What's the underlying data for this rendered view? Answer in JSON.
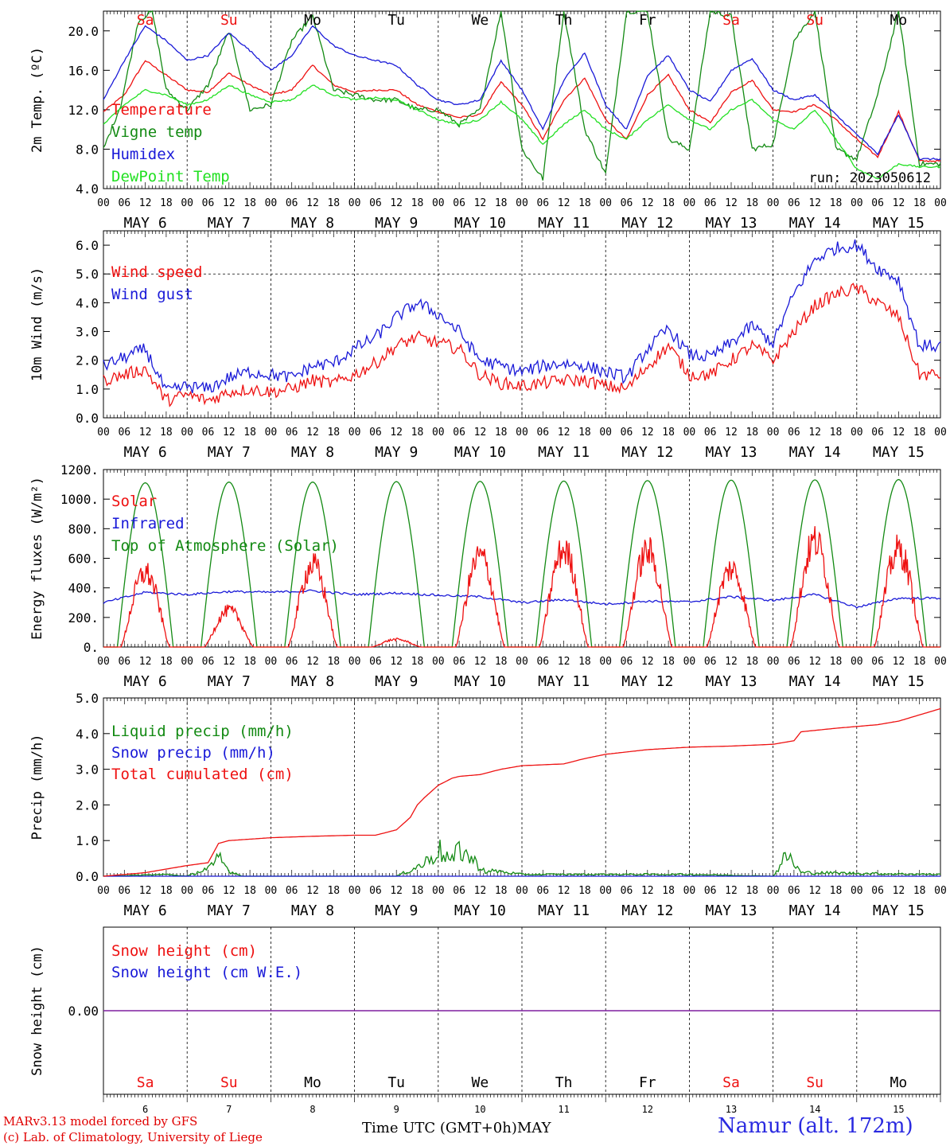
{
  "footer": {
    "credit_line1": "MARv3.13 model forced by GFS",
    "credit_line2": "(c) Lab. of Climatology, University of Liege",
    "xaxis_title": "Time UTC (GMT+0h)MAY",
    "station": "Namur (alt. 172m)"
  },
  "colors": {
    "red": "#ee1111",
    "blue": "#1a1ad8",
    "green": "#138a13",
    "lightgreen": "#22e022",
    "purple": "#7f1f9f",
    "weekend": "#ee1111",
    "weekday": "#000000"
  },
  "chart_data": [
    {
      "type": "line",
      "ylabel": "2m Temp. (ºC)",
      "ylim": [
        4,
        22
      ],
      "yticks": [
        "4.0",
        "8.0",
        "12.0",
        "16.0",
        "20.0"
      ],
      "ytick_values": [
        4,
        8,
        12,
        16,
        20
      ],
      "grid": "vertical dashed at 00 UTC",
      "annotation": "run: 2023050612",
      "weekday_labels": [
        "Sa",
        "Su",
        "Mo",
        "Tu",
        "We",
        "Th",
        "Fr",
        "Sa",
        "Su",
        "Mo"
      ],
      "x_unit": "hours since May 6 00 UTC",
      "series": [
        {
          "name": "Temperature",
          "color": "red",
          "x": [
            0,
            6,
            12,
            18,
            24,
            30,
            36,
            42,
            48,
            54,
            60,
            66,
            72,
            78,
            84,
            90,
            96,
            102,
            108,
            114,
            120,
            126,
            132,
            138,
            144,
            150,
            156,
            162,
            168,
            174,
            180,
            186,
            192,
            198,
            204,
            210,
            216,
            222,
            228,
            234
          ],
          "y": [
            11.8,
            13.5,
            17.0,
            15.5,
            14.0,
            13.8,
            15.7,
            14.5,
            13.5,
            14.0,
            16.5,
            14.5,
            13.8,
            14.0,
            14.0,
            12.5,
            11.8,
            11.2,
            11.5,
            14.8,
            12.5,
            9.0,
            13.0,
            15.2,
            11.0,
            9.0,
            13.5,
            15.5,
            12.0,
            10.7,
            13.8,
            15.0,
            12.0,
            11.8,
            12.5,
            11.0,
            9.0,
            7.2,
            11.8,
            6.8
          ]
        },
        {
          "name": "Vigne temp",
          "color": "green",
          "x": [
            0,
            5,
            10,
            14,
            18,
            24,
            30,
            36,
            42,
            48,
            54,
            60,
            66,
            72,
            78,
            84,
            90,
            96,
            102,
            108,
            114,
            120,
            126,
            132,
            138,
            144,
            150,
            156,
            162,
            168,
            174,
            180,
            186,
            192,
            198,
            204,
            210,
            216,
            222,
            228,
            234
          ],
          "y": [
            8.0,
            12.5,
            21.0,
            22.0,
            14.0,
            12.0,
            14.5,
            20.0,
            12.0,
            12.5,
            19.0,
            21.5,
            14.0,
            13.5,
            13.0,
            13.0,
            12.0,
            12.0,
            10.5,
            12.0,
            22.0,
            8.0,
            5.0,
            22.0,
            10.0,
            5.5,
            22.0,
            22.0,
            9.0,
            8.0,
            22.0,
            21.5,
            8.0,
            8.5,
            19.0,
            22.0,
            8.0,
            7.0,
            13.5,
            22.0,
            6.5
          ]
        },
        {
          "name": "Humidex",
          "color": "blue",
          "x": [
            0,
            6,
            12,
            18,
            24,
            30,
            36,
            42,
            48,
            54,
            60,
            66,
            72,
            78,
            84,
            90,
            96,
            102,
            108,
            114,
            120,
            126,
            132,
            138,
            144,
            150,
            156,
            162,
            168,
            174,
            180,
            186,
            192,
            198,
            204,
            210,
            216,
            222,
            228,
            234
          ],
          "y": [
            13.0,
            17.0,
            20.5,
            19.0,
            17.0,
            17.5,
            19.8,
            18.0,
            16.0,
            17.5,
            20.5,
            18.5,
            17.5,
            17.0,
            16.5,
            14.5,
            13.0,
            12.5,
            13.0,
            17.0,
            14.0,
            10.0,
            15.0,
            17.8,
            12.5,
            10.0,
            15.5,
            17.5,
            14.0,
            12.8,
            16.0,
            17.2,
            14.0,
            13.0,
            13.5,
            11.5,
            9.5,
            7.5,
            11.5,
            7.0
          ]
        },
        {
          "name": "DewPoint Temp",
          "color": "lightgreen",
          "x": [
            0,
            6,
            12,
            18,
            24,
            30,
            36,
            42,
            48,
            54,
            60,
            66,
            72,
            78,
            84,
            90,
            96,
            102,
            108,
            114,
            120,
            126,
            132,
            138,
            144,
            150,
            156,
            162,
            168,
            174,
            180,
            186,
            192,
            198,
            204,
            210,
            216,
            222,
            228,
            234
          ],
          "y": [
            10.5,
            12.5,
            14.0,
            13.5,
            12.5,
            13.0,
            14.5,
            13.5,
            12.8,
            13.0,
            14.5,
            13.5,
            13.0,
            13.2,
            13.0,
            12.0,
            11.0,
            10.5,
            11.0,
            12.8,
            11.0,
            8.5,
            10.5,
            12.0,
            10.0,
            9.0,
            11.0,
            12.5,
            11.0,
            10.0,
            12.0,
            13.0,
            11.0,
            10.0,
            12.0,
            9.0,
            6.0,
            5.0,
            6.5,
            6.2
          ]
        }
      ]
    },
    {
      "type": "line",
      "ylabel": "10m Wind (m/s)",
      "ylim": [
        0,
        6.5
      ],
      "yticks": [
        "0.0",
        "1.0",
        "2.0",
        "3.0",
        "4.0",
        "5.0",
        "6.0"
      ],
      "ytick_values": [
        0,
        1,
        2,
        3,
        4,
        5,
        6
      ],
      "reference_line": 5.0,
      "series": [
        {
          "name": "Wind speed",
          "color": "red",
          "x": [
            0,
            6,
            12,
            18,
            24,
            30,
            36,
            42,
            48,
            54,
            60,
            66,
            72,
            78,
            84,
            90,
            96,
            102,
            108,
            114,
            120,
            126,
            132,
            138,
            144,
            150,
            156,
            162,
            168,
            174,
            180,
            186,
            192,
            198,
            204,
            210,
            216,
            222,
            228,
            234
          ],
          "y": [
            1.3,
            1.5,
            1.7,
            0.6,
            0.8,
            0.6,
            0.9,
            1.0,
            0.9,
            1.0,
            1.3,
            1.2,
            1.5,
            1.9,
            2.5,
            2.8,
            2.6,
            2.4,
            1.5,
            1.2,
            1.1,
            1.2,
            1.3,
            1.3,
            1.1,
            1.0,
            1.8,
            2.5,
            1.5,
            1.5,
            2.0,
            2.5,
            2.0,
            3.0,
            3.9,
            4.3,
            4.5,
            4.0,
            3.5,
            1.5
          ]
        },
        {
          "name": "Wind gust",
          "color": "blue",
          "x": [
            0,
            6,
            12,
            18,
            24,
            30,
            36,
            42,
            48,
            54,
            60,
            66,
            72,
            78,
            84,
            90,
            96,
            102,
            108,
            114,
            120,
            126,
            132,
            138,
            144,
            150,
            156,
            162,
            168,
            174,
            180,
            186,
            192,
            198,
            204,
            210,
            216,
            222,
            228,
            234
          ],
          "y": [
            1.8,
            2.1,
            2.4,
            0.9,
            1.1,
            1.0,
            1.4,
            1.6,
            1.5,
            1.4,
            1.8,
            1.9,
            2.4,
            2.8,
            3.5,
            4.0,
            3.6,
            3.0,
            2.0,
            1.8,
            1.6,
            1.8,
            1.9,
            1.8,
            1.6,
            1.4,
            2.4,
            3.1,
            2.2,
            2.1,
            2.6,
            3.2,
            2.6,
            4.3,
            5.5,
            5.9,
            6.0,
            5.2,
            4.8,
            2.5
          ]
        }
      ]
    },
    {
      "type": "line",
      "ylabel": "Energy fluxes (W/m²)",
      "ylim": [
        0,
        1200
      ],
      "yticks": [
        "0.",
        "200.",
        "400.",
        "600.",
        "800.",
        "1000.",
        "1200."
      ],
      "ytick_values": [
        0,
        200,
        400,
        600,
        800,
        1000,
        1200
      ],
      "series": [
        {
          "name": "Solar",
          "color": "red",
          "daily_peak": [
            590,
            290,
            650,
            60,
            720,
            770,
            760,
            620,
            840,
            770
          ]
        },
        {
          "name": "Infrared",
          "color": "blue",
          "x": [
            0,
            12,
            24,
            36,
            48,
            60,
            72,
            84,
            96,
            108,
            120,
            132,
            144,
            156,
            168,
            180,
            192,
            204,
            216,
            228,
            240
          ],
          "y": [
            300,
            370,
            355,
            375,
            370,
            380,
            355,
            365,
            350,
            340,
            300,
            320,
            290,
            310,
            305,
            340,
            315,
            355,
            270,
            330,
            330
          ]
        },
        {
          "name": "Top of Atmosphere (Solar)",
          "color": "green",
          "daily_peak": [
            1110,
            1115,
            1115,
            1118,
            1120,
            1122,
            1125,
            1128,
            1130,
            1132
          ]
        }
      ]
    },
    {
      "type": "line",
      "ylabel": "Precip (mm/h)",
      "ylim": [
        0,
        5
      ],
      "yticks": [
        "0.0",
        "1.0",
        "2.0",
        "3.0",
        "4.0",
        "5.0"
      ],
      "ytick_values": [
        0,
        1,
        2,
        3,
        4,
        5
      ],
      "series": [
        {
          "name": "Liquid precip (mm/h)",
          "color": "green",
          "x": [
            0,
            18,
            24,
            32,
            33,
            36,
            40,
            48,
            72,
            84,
            92,
            96,
            100,
            102,
            110,
            112,
            120,
            144,
            168,
            192,
            196,
            200,
            240
          ],
          "y": [
            0,
            0.05,
            0,
            0.3,
            0.55,
            0.15,
            0,
            0,
            0,
            0,
            0.35,
            0.75,
            0.4,
            0.78,
            0.1,
            0.15,
            0.05,
            0.05,
            0.05,
            0,
            0.6,
            0.1,
            0.05
          ]
        },
        {
          "name": "Snow precip (mm/h)",
          "color": "blue",
          "x": [
            0,
            240
          ],
          "y": [
            0,
            0
          ]
        },
        {
          "name": "Total cumulated (cm)",
          "color": "red",
          "x": [
            0,
            12,
            18,
            24,
            30,
            33,
            36,
            48,
            60,
            72,
            78,
            84,
            88,
            90,
            92,
            96,
            100,
            102,
            108,
            114,
            120,
            132,
            138,
            144,
            156,
            168,
            180,
            192,
            198,
            200,
            210,
            222,
            228,
            240
          ],
          "y": [
            0,
            0.1,
            0.2,
            0.3,
            0.38,
            0.92,
            1.0,
            1.08,
            1.12,
            1.15,
            1.15,
            1.3,
            1.65,
            2.0,
            2.2,
            2.55,
            2.75,
            2.8,
            2.85,
            3.0,
            3.1,
            3.15,
            3.3,
            3.42,
            3.55,
            3.62,
            3.65,
            3.7,
            3.8,
            4.05,
            4.15,
            4.25,
            4.35,
            4.7
          ]
        }
      ]
    },
    {
      "type": "line",
      "ylabel": "Snow height (cm)",
      "yticks": [
        "0.00"
      ],
      "series": [
        {
          "name": "Snow height (cm)",
          "color": "red",
          "x": [
            0,
            240
          ],
          "y": [
            0,
            0
          ]
        },
        {
          "name": "Snow height (cm W.E.)",
          "color": "blue",
          "x": [
            0,
            240
          ],
          "y": [
            0,
            0
          ]
        }
      ],
      "day_numbers": [
        "6",
        "7",
        "8",
        "9",
        "10",
        "11",
        "12",
        "13",
        "14",
        "15"
      ],
      "weekday_labels": [
        "Sa",
        "Su",
        "Mo",
        "Tu",
        "We",
        "Th",
        "Fr",
        "Sa",
        "Su",
        "Mo"
      ]
    }
  ],
  "x_axis": {
    "hour_labels": [
      "00",
      "06",
      "12",
      "18"
    ],
    "end_label": "00",
    "date_labels": [
      "MAY  6",
      "MAY  7",
      "MAY  8",
      "MAY  9",
      "MAY 10",
      "MAY 11",
      "MAY 12",
      "MAY 13",
      "MAY 14",
      "MAY 15"
    ]
  }
}
